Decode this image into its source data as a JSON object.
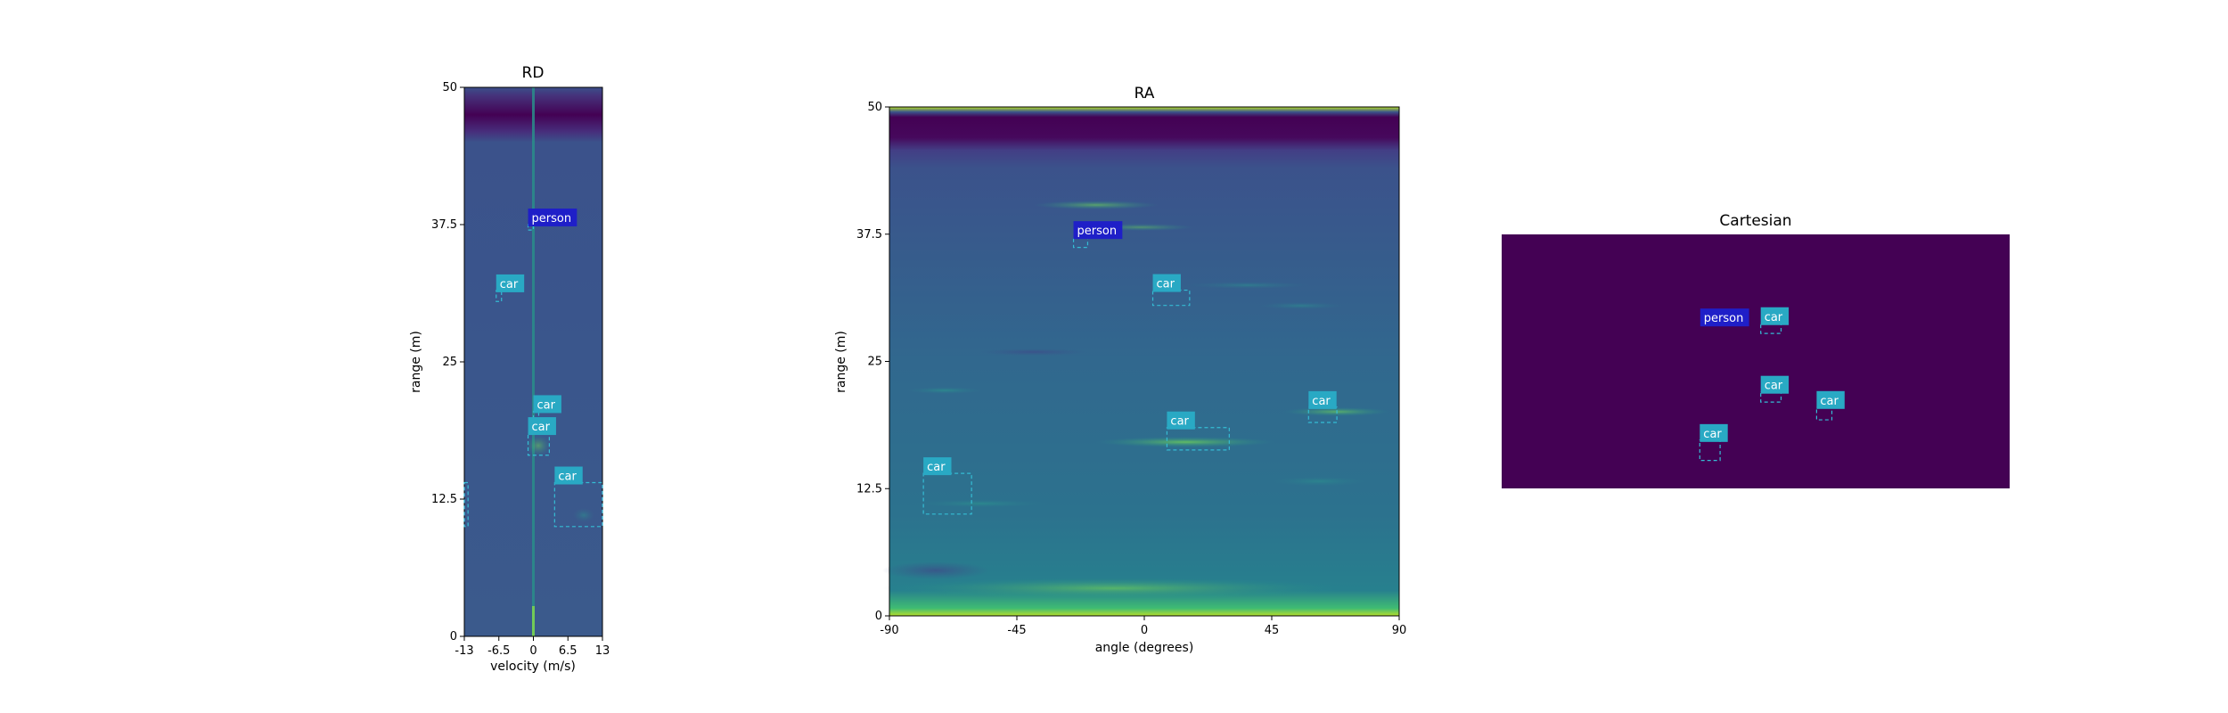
{
  "chart_data": [
    {
      "type": "heatmap",
      "title": "RD",
      "xlabel": "velocity (m/s)",
      "ylabel": "range (m)",
      "xlim": [
        -13,
        13
      ],
      "ylim": [
        0,
        50
      ],
      "xticks": [
        "-13",
        "-6.5",
        "0",
        "6.5",
        "13"
      ],
      "yticks": [
        "0",
        "12.5",
        "25",
        "37.5",
        "50"
      ],
      "detections": [
        {
          "label": "person",
          "x0": -1,
          "x1": 0,
          "y0": 37.0,
          "y1": 37.5
        },
        {
          "label": "car",
          "x0": -7,
          "x1": -6,
          "y0": 30.5,
          "y1": 31.5
        },
        {
          "label": "car",
          "x0": 0,
          "x1": 1,
          "y0": 19.5,
          "y1": 20.5
        },
        {
          "label": "car",
          "x0": -1,
          "x1": 3,
          "y0": 16.5,
          "y1": 18.5
        },
        {
          "label": "car",
          "x0": 4,
          "x1": 13,
          "y0": 10,
          "y1": 14
        },
        {
          "label": "",
          "x0": -13,
          "x1": -12.3,
          "y0": 10,
          "y1": 14
        }
      ]
    },
    {
      "type": "heatmap",
      "title": "RA",
      "xlabel": "angle (degrees)",
      "ylabel": "range (m)",
      "xlim": [
        -90,
        90
      ],
      "ylim": [
        0,
        50
      ],
      "xticks": [
        "-90",
        "-45",
        "0",
        "45",
        "90"
      ],
      "yticks": [
        "0",
        "12.5",
        "25",
        "37.5",
        "50"
      ],
      "detections": [
        {
          "label": "person",
          "x0": -25,
          "x1": -20,
          "y0": 36.2,
          "y1": 37.2
        },
        {
          "label": "car",
          "x0": 3,
          "x1": 16,
          "y0": 30.5,
          "y1": 32
        },
        {
          "label": "car",
          "x0": 58,
          "x1": 68,
          "y0": 19,
          "y1": 20.5
        },
        {
          "label": "car",
          "x0": 8,
          "x1": 30,
          "y0": 16.3,
          "y1": 18.5
        },
        {
          "label": "car",
          "x0": -78,
          "x1": -61,
          "y0": 10,
          "y1": 14
        }
      ]
    },
    {
      "type": "heatmap",
      "title": "Cartesian",
      "detections": [
        {
          "label": "person",
          "fx": 0.44,
          "fy": 0.32
        },
        {
          "label": "car",
          "fx0": 0.51,
          "fx1": 0.55,
          "fy0": 0.35,
          "fy1": 0.39
        },
        {
          "label": "car",
          "fx0": 0.51,
          "fx1": 0.55,
          "fy0": 0.62,
          "fy1": 0.66
        },
        {
          "label": "car",
          "fx0": 0.62,
          "fx1": 0.65,
          "fy0": 0.68,
          "fy1": 0.73
        },
        {
          "label": "car",
          "fx0": 0.39,
          "fx1": 0.43,
          "fy0": 0.81,
          "fy1": 0.89
        }
      ]
    }
  ],
  "colors": {
    "person_box": "#1f1fc8",
    "car_box": "#29a9c4",
    "cartesian_bg": "#440154",
    "dashed_box": "#35bcd4"
  }
}
